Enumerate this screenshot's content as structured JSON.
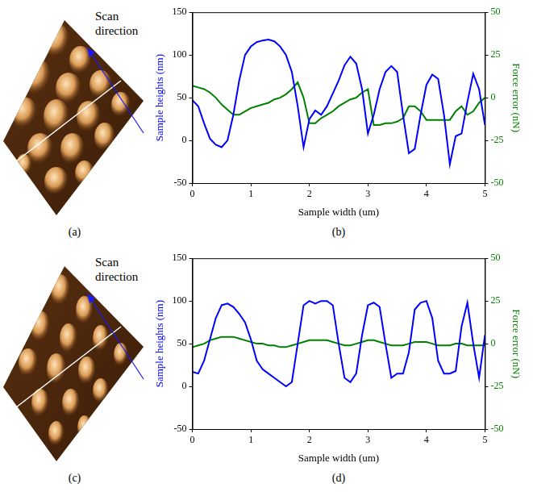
{
  "chart_data": [
    {
      "type": "line",
      "panel": "(b)",
      "x_label": "Sample width (um)",
      "y_label": "Sample heights (nm)",
      "y2_label": "Force error (nN)",
      "xlim": [
        0,
        5
      ],
      "xticks": [
        0,
        1,
        2,
        3,
        4,
        5
      ],
      "ylim": [
        -50,
        150
      ],
      "yticks": [
        -50,
        0,
        50,
        100,
        150
      ],
      "y2lim": [
        -50,
        50
      ],
      "y2ticks": [
        -50,
        -25,
        0,
        25,
        50
      ],
      "grid": false,
      "x": [
        0,
        0.1,
        0.2,
        0.3,
        0.4,
        0.5,
        0.6,
        0.7,
        0.8,
        0.9,
        1,
        1.1,
        1.2,
        1.3,
        1.4,
        1.5,
        1.6,
        1.7,
        1.8,
        1.9,
        2,
        2.1,
        2.2,
        2.3,
        2.4,
        2.5,
        2.6,
        2.7,
        2.8,
        2.9,
        3,
        3.1,
        3.2,
        3.3,
        3.4,
        3.5,
        3.6,
        3.7,
        3.8,
        3.9,
        4,
        4.1,
        4.2,
        4.3,
        4.4,
        4.5,
        4.6,
        4.7,
        4.8,
        4.9,
        5
      ],
      "series": [
        {
          "color": "#0000ff",
          "values": [
            47,
            40,
            20,
            2,
            -5,
            -8,
            0,
            30,
            70,
            100,
            110,
            115,
            117,
            118,
            116,
            110,
            100,
            80,
            40,
            -8,
            25,
            35,
            30,
            40,
            55,
            70,
            88,
            98,
            90,
            60,
            8,
            30,
            60,
            80,
            87,
            80,
            30,
            -15,
            -10,
            30,
            65,
            77,
            72,
            30,
            -28,
            5,
            8,
            45,
            78,
            60,
            18
          ]
        },
        {
          "color": "#008000",
          "axis": "y2",
          "values": [
            7,
            6,
            5,
            3,
            0,
            -4,
            -7,
            -10,
            -10,
            -8,
            -6,
            -5,
            -4,
            -3,
            -1,
            0,
            2,
            5,
            9,
            0,
            -15,
            -15,
            -12,
            -10,
            -8,
            -5,
            -3,
            -1,
            0,
            3,
            5,
            -16,
            -16,
            -15,
            -15,
            -14,
            -12,
            -5,
            -5,
            -8,
            -13,
            -13,
            -13,
            -13,
            -13,
            -8,
            -5,
            -10,
            -8,
            -3,
            0
          ]
        }
      ]
    },
    {
      "type": "line",
      "panel": "(d)",
      "x_label": "Sample width (um)",
      "y_label": "Sample heights (nm)",
      "y2_label": "Force error (nN)",
      "xlim": [
        0,
        5
      ],
      "xticks": [
        0,
        1,
        2,
        3,
        4,
        5
      ],
      "ylim": [
        -50,
        150
      ],
      "yticks": [
        -50,
        0,
        50,
        100,
        150
      ],
      "y2lim": [
        -50,
        50
      ],
      "y2ticks": [
        -50,
        -25,
        0,
        25,
        50
      ],
      "grid": false,
      "x": [
        0,
        0.1,
        0.2,
        0.3,
        0.4,
        0.5,
        0.6,
        0.7,
        0.8,
        0.9,
        1,
        1.1,
        1.2,
        1.3,
        1.4,
        1.5,
        1.6,
        1.7,
        1.8,
        1.9,
        2,
        2.1,
        2.2,
        2.3,
        2.4,
        2.5,
        2.6,
        2.7,
        2.8,
        2.9,
        3,
        3.1,
        3.2,
        3.3,
        3.4,
        3.5,
        3.6,
        3.7,
        3.8,
        3.9,
        4,
        4.1,
        4.2,
        4.3,
        4.4,
        4.5,
        4.6,
        4.7,
        4.8,
        4.9,
        5
      ],
      "series": [
        {
          "color": "#0000ff",
          "values": [
            17,
            15,
            30,
            55,
            80,
            95,
            97,
            93,
            85,
            75,
            55,
            30,
            20,
            15,
            10,
            5,
            0,
            5,
            50,
            95,
            100,
            97,
            100,
            100,
            95,
            50,
            10,
            5,
            15,
            60,
            95,
            98,
            93,
            50,
            10,
            15,
            15,
            40,
            90,
            98,
            100,
            80,
            30,
            15,
            15,
            18,
            70,
            98,
            50,
            10,
            60
          ]
        },
        {
          "color": "#008000",
          "axis": "y2",
          "values": [
            -2,
            -1,
            0,
            2,
            3,
            4,
            4,
            4,
            3,
            2,
            1,
            0,
            0,
            -1,
            -1,
            -2,
            -2,
            -1,
            0,
            1,
            2,
            2,
            2,
            2,
            1,
            0,
            -1,
            -1,
            0,
            1,
            2,
            2,
            1,
            0,
            -1,
            -1,
            -1,
            0,
            1,
            1,
            1,
            0,
            -1,
            -1,
            -1,
            0,
            0,
            -1,
            -1,
            -1,
            -1
          ]
        }
      ]
    }
  ],
  "images": [
    {
      "panel": "(a)",
      "annotation": "Scan direction"
    },
    {
      "panel": "(c)",
      "annotation": "Scan direction"
    }
  ]
}
